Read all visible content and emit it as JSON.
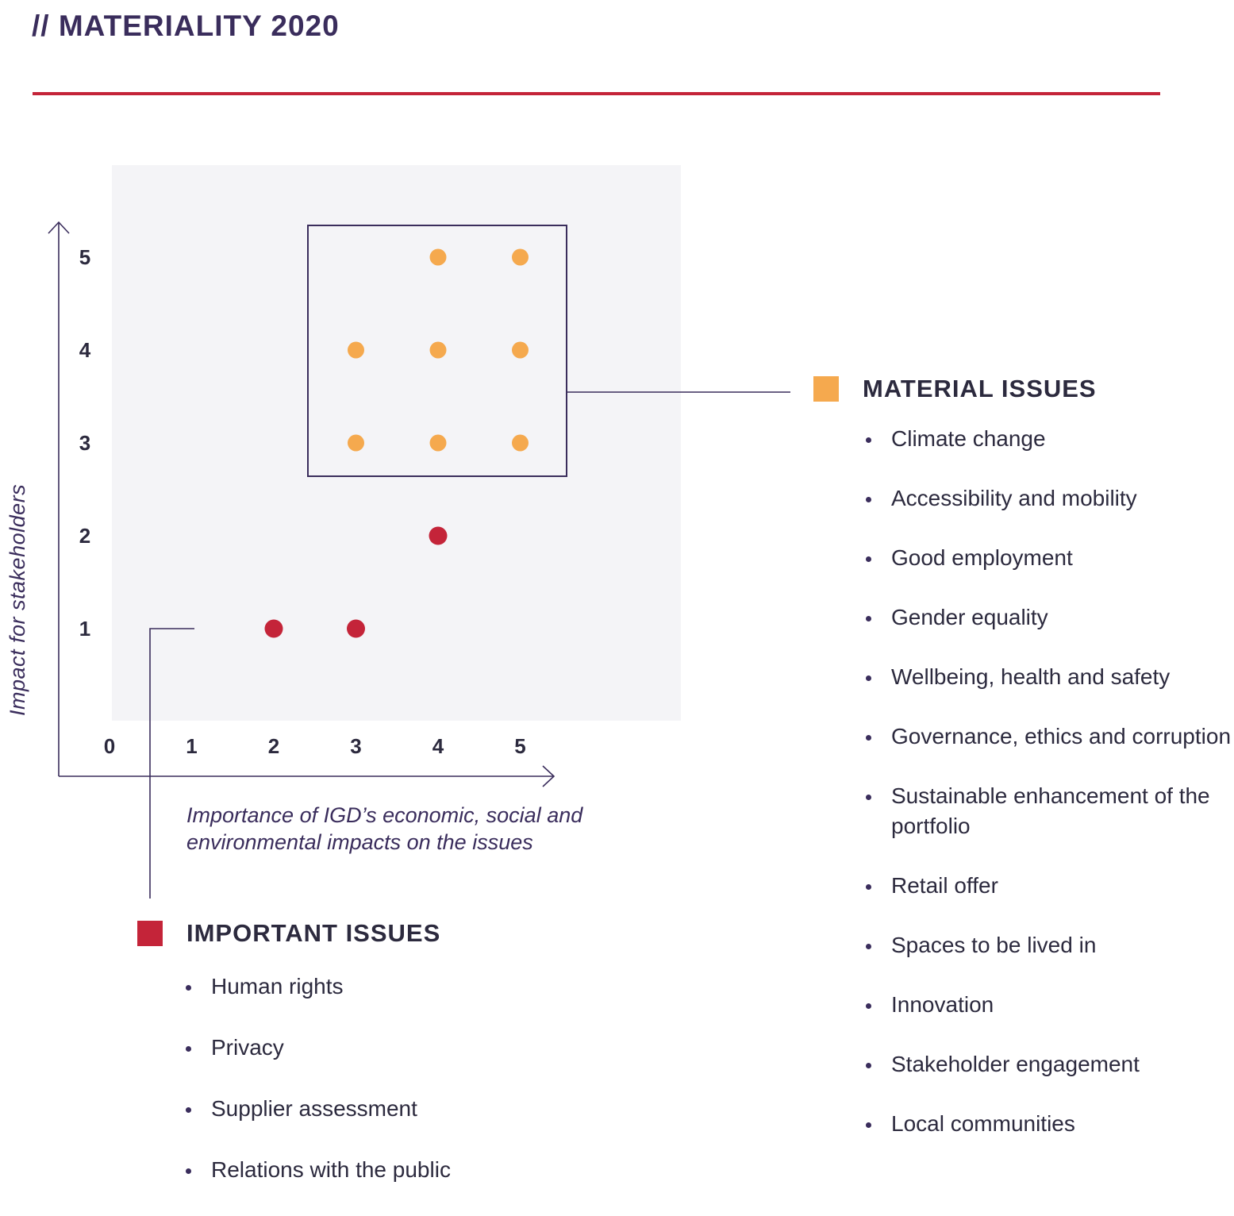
{
  "page": {
    "title": "// MATERIALITY 2020"
  },
  "colors": {
    "material": "#f5a94e",
    "important": "#c42439",
    "axis": "#3a2d5c",
    "plot_bg": "#f4f4f7",
    "rule": "#c42439"
  },
  "chart_data": {
    "type": "scatter",
    "title": "",
    "xlabel": "Importance of IGD’s economic, social and environmental impacts on the issues",
    "ylabel": "Impact for stakeholders",
    "x_ticks": [
      "0",
      "1",
      "2",
      "3",
      "4",
      "5"
    ],
    "y_ticks": [
      "1",
      "2",
      "3",
      "4",
      "5"
    ],
    "xlim": [
      0,
      5
    ],
    "ylim": [
      0,
      5
    ],
    "grid": false,
    "series": [
      {
        "name": "MATERIAL ISSUES",
        "color": "#f5a94e",
        "points": [
          [
            4,
            5
          ],
          [
            5,
            5
          ],
          [
            3,
            4
          ],
          [
            4,
            4
          ],
          [
            5,
            4
          ],
          [
            3,
            3
          ],
          [
            4,
            3
          ],
          [
            5,
            3
          ]
        ]
      },
      {
        "name": "IMPORTANT ISSUES",
        "color": "#c42439",
        "points": [
          [
            4,
            2
          ],
          [
            2,
            1
          ],
          [
            3,
            1
          ]
        ]
      }
    ]
  },
  "legend": {
    "material": {
      "title": "MATERIAL ISSUES",
      "items": [
        "Climate change",
        "Accessibility and mobility",
        "Good employment",
        "Gender equality",
        "Wellbeing, health and safety",
        "Governance, ethics and corruption",
        "Sustainable enhancement of the portfolio",
        "Retail offer",
        "Spaces to be lived in",
        "Innovation",
        "Stakeholder engagement",
        "Local communities"
      ]
    },
    "important": {
      "title": "IMPORTANT ISSUES",
      "items": [
        "Human rights",
        "Privacy",
        "Supplier assessment",
        "Relations with the public"
      ]
    }
  }
}
